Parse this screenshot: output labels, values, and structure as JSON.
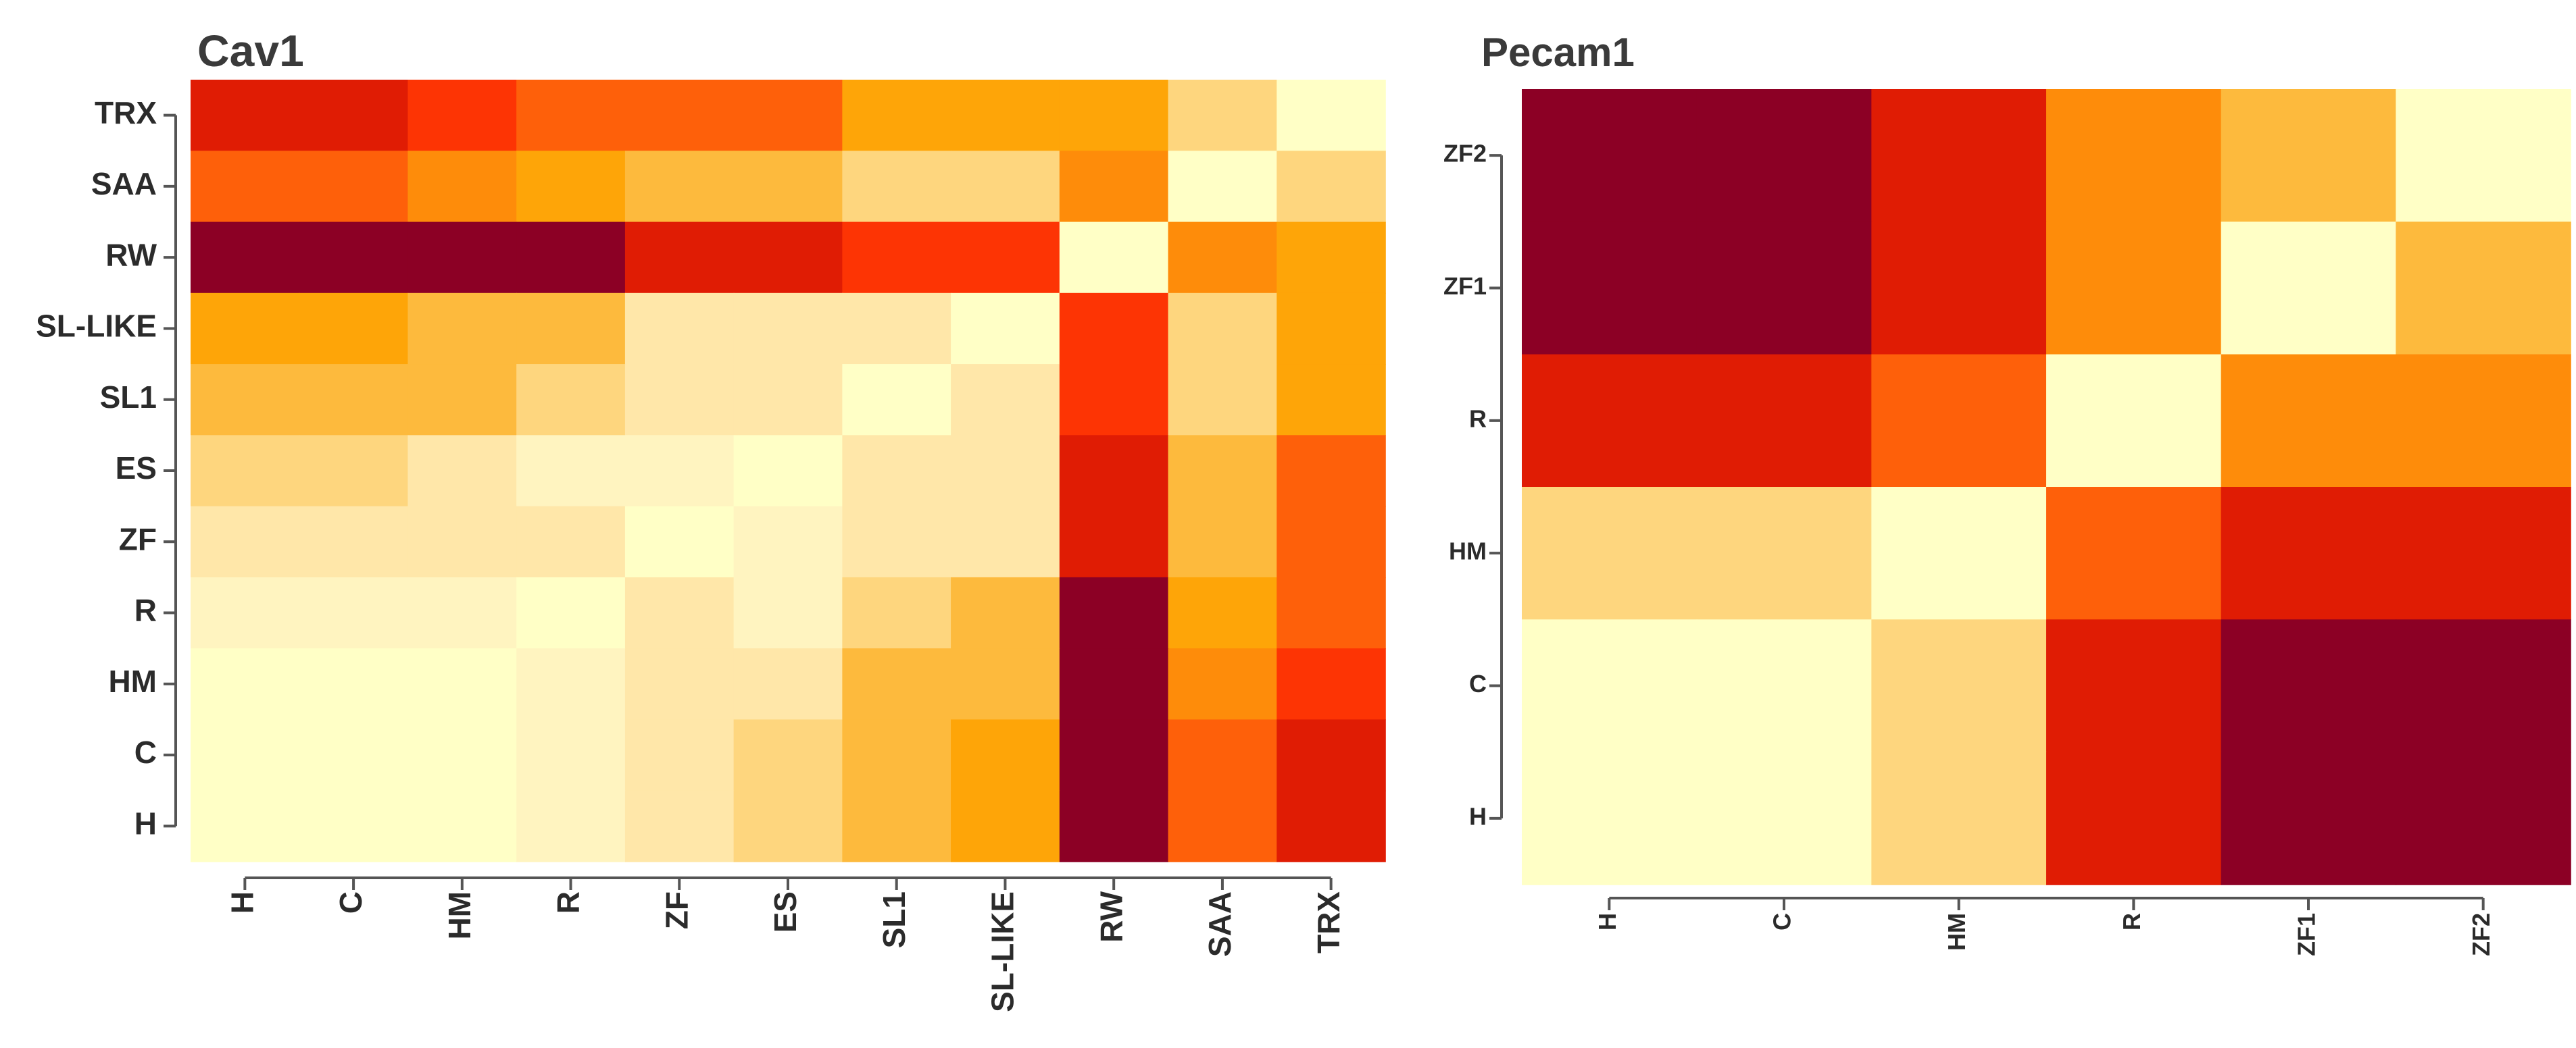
{
  "palette": [
    "#FFFFC6",
    "#FFF4C0",
    "#FFE7A9",
    "#FED67E",
    "#FDBA3D",
    "#FEA508",
    "#FE8C0A",
    "#FE600A",
    "#FD3404",
    "#E01C04",
    "#8C0025"
  ],
  "chart_data": [
    {
      "type": "heatmap",
      "title": "Cav1",
      "rows": [
        "TRX",
        "SAA",
        "RW",
        "SL-LIKE",
        "SL1",
        "ES",
        "ZF",
        "R",
        "HM",
        "C",
        "H"
      ],
      "columns": [
        "H",
        "C",
        "HM",
        "R",
        "ZF",
        "ES",
        "SL1",
        "SL-LIKE",
        "RW",
        "SAA",
        "TRX"
      ],
      "value_scale": "0 (lightest) to 10 (darkest)",
      "values": [
        [
          9,
          9,
          8,
          7,
          7,
          7,
          5,
          5,
          5,
          3,
          0
        ],
        [
          7,
          7,
          6,
          5,
          4,
          4,
          3,
          3,
          6,
          0,
          3
        ],
        [
          10,
          10,
          10,
          10,
          9,
          9,
          8,
          8,
          0,
          6,
          5
        ],
        [
          5,
          5,
          4,
          4,
          2,
          2,
          2,
          0,
          8,
          3,
          5
        ],
        [
          4,
          4,
          4,
          3,
          2,
          2,
          0,
          2,
          8,
          3,
          5
        ],
        [
          3,
          3,
          2,
          1,
          1,
          0,
          2,
          2,
          9,
          4,
          7
        ],
        [
          2,
          2,
          2,
          2,
          0,
          1,
          2,
          2,
          9,
          4,
          7
        ],
        [
          1,
          1,
          1,
          0,
          2,
          1,
          3,
          4,
          10,
          5,
          7
        ],
        [
          0,
          0,
          0,
          1,
          2,
          2,
          4,
          4,
          10,
          6,
          8
        ],
        [
          0,
          0,
          0,
          1,
          2,
          3,
          4,
          5,
          10,
          7,
          9
        ],
        [
          0,
          0,
          0,
          1,
          2,
          3,
          4,
          5,
          10,
          7,
          9
        ]
      ]
    },
    {
      "type": "heatmap",
      "title": "Pecam1",
      "rows": [
        "ZF2",
        "ZF1",
        "R",
        "HM",
        "C",
        "H"
      ],
      "columns": [
        "H",
        "C",
        "HM",
        "R",
        "ZF1",
        "ZF2"
      ],
      "value_scale": "0 (lightest) to 10 (darkest)",
      "values": [
        [
          10,
          10,
          9,
          6,
          4,
          0
        ],
        [
          10,
          10,
          9,
          6,
          0,
          4
        ],
        [
          9,
          9,
          7,
          0,
          6,
          6
        ],
        [
          3,
          3,
          0,
          7,
          9,
          9
        ],
        [
          0,
          0,
          3,
          9,
          10,
          10
        ],
        [
          0,
          0,
          3,
          9,
          10,
          10
        ]
      ]
    }
  ]
}
